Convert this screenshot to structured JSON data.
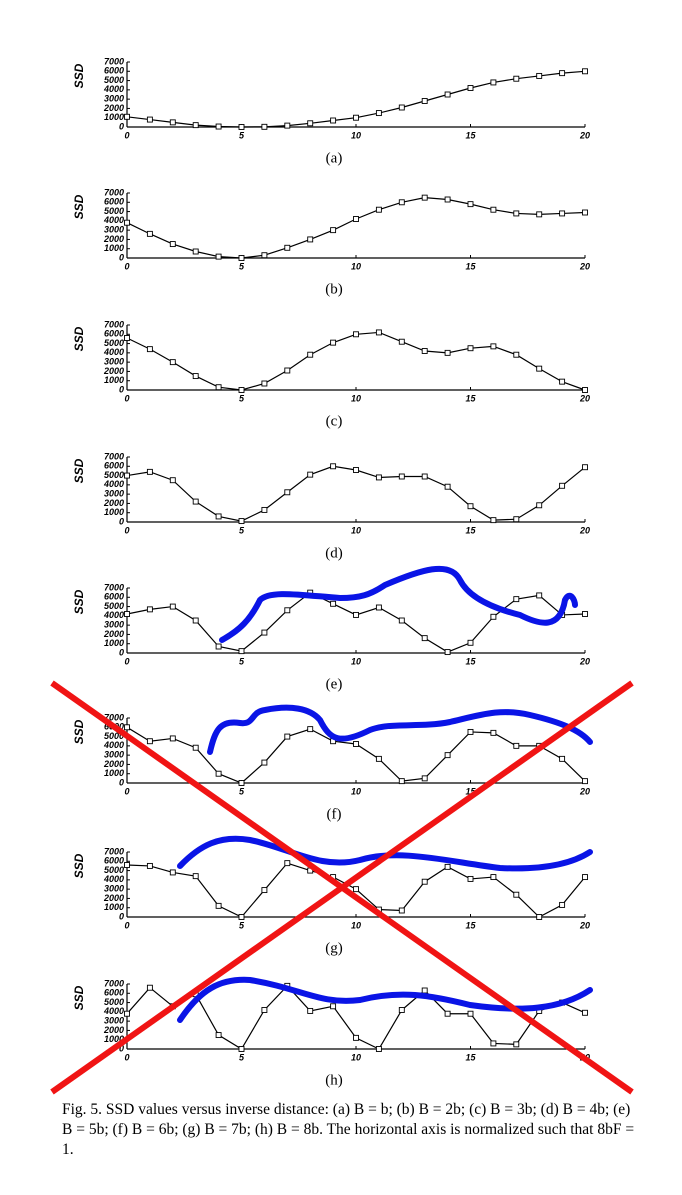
{
  "chart_data": [
    {
      "type": "line",
      "label": "(a)",
      "ylabel": "SSD",
      "x": [
        0,
        1,
        2,
        3,
        4,
        5,
        6,
        7,
        8,
        9,
        10,
        11,
        12,
        13,
        14,
        15,
        16,
        17,
        18,
        19,
        20
      ],
      "values": [
        1100,
        800,
        500,
        200,
        50,
        0,
        20,
        150,
        400,
        700,
        1000,
        1500,
        2100,
        2800,
        3500,
        4200,
        4800,
        5200,
        5500,
        5800,
        6000
      ],
      "xlim": [
        0,
        20
      ],
      "ylim": [
        0,
        7000
      ],
      "xticks": [
        0,
        5,
        10,
        15,
        20
      ],
      "yticks": [
        0,
        1000,
        2000,
        3000,
        4000,
        5000,
        6000,
        7000
      ]
    },
    {
      "type": "line",
      "label": "(b)",
      "ylabel": "SSD",
      "x": [
        0,
        1,
        2,
        3,
        4,
        5,
        6,
        7,
        8,
        9,
        10,
        11,
        12,
        13,
        14,
        15,
        16,
        17,
        18,
        19,
        20
      ],
      "values": [
        3800,
        2600,
        1500,
        700,
        150,
        0,
        300,
        1100,
        2000,
        3000,
        4200,
        5200,
        6000,
        6500,
        6300,
        5800,
        5200,
        4800,
        4700,
        4800,
        4900
      ],
      "xlim": [
        0,
        20
      ],
      "ylim": [
        0,
        7000
      ],
      "xticks": [
        0,
        5,
        10,
        15,
        20
      ],
      "yticks": [
        0,
        1000,
        2000,
        3000,
        4000,
        5000,
        6000,
        7000
      ]
    },
    {
      "type": "line",
      "label": "(c)",
      "ylabel": "SSD",
      "x": [
        0,
        1,
        2,
        3,
        4,
        5,
        6,
        7,
        8,
        9,
        10,
        11,
        12,
        13,
        14,
        15,
        16,
        17,
        18,
        19,
        20
      ],
      "values": [
        5600,
        4400,
        3000,
        1500,
        300,
        0,
        700,
        2100,
        3800,
        5100,
        6000,
        6200,
        5200,
        4200,
        4000,
        4500,
        4700,
        3800,
        2300,
        900,
        0
      ],
      "xlim": [
        0,
        20
      ],
      "ylim": [
        0,
        7000
      ],
      "xticks": [
        0,
        5,
        10,
        15,
        20
      ],
      "yticks": [
        0,
        1000,
        2000,
        3000,
        4000,
        5000,
        6000,
        7000
      ]
    },
    {
      "type": "line",
      "label": "(d)",
      "ylabel": "SSD",
      "x": [
        0,
        1,
        2,
        3,
        4,
        5,
        6,
        7,
        8,
        9,
        10,
        11,
        12,
        13,
        14,
        15,
        16,
        17,
        18,
        19,
        20
      ],
      "values": [
        5000,
        5400,
        4500,
        2200,
        600,
        100,
        1300,
        3200,
        5100,
        6000,
        5600,
        4800,
        4900,
        4900,
        3800,
        1700,
        200,
        300,
        1800,
        3900,
        5900
      ],
      "xlim": [
        0,
        20
      ],
      "ylim": [
        0,
        7000
      ],
      "xticks": [
        0,
        5,
        10,
        15,
        20
      ],
      "yticks": [
        0,
        1000,
        2000,
        3000,
        4000,
        5000,
        6000,
        7000
      ]
    },
    {
      "type": "line",
      "label": "(e)",
      "ylabel": "SSD",
      "x": [
        0,
        1,
        2,
        3,
        4,
        5,
        6,
        7,
        8,
        9,
        10,
        11,
        12,
        13,
        14,
        15,
        16,
        17,
        18,
        19,
        20
      ],
      "values": [
        4200,
        4700,
        5000,
        3500,
        700,
        200,
        2200,
        4600,
        6500,
        5300,
        4100,
        4900,
        3500,
        1600,
        100,
        1100,
        3900,
        5800,
        6200,
        4100,
        4200
      ],
      "xlim": [
        0,
        20
      ],
      "ylim": [
        0,
        7000
      ],
      "xticks": [
        0,
        5,
        10,
        15,
        20
      ],
      "yticks": [
        0,
        1000,
        2000,
        3000,
        4000,
        5000,
        6000,
        7000
      ]
    },
    {
      "type": "line",
      "label": "(f)",
      "ylabel": "SSD",
      "x": [
        0,
        1,
        2,
        3,
        4,
        5,
        6,
        7,
        8,
        9,
        10,
        11,
        12,
        13,
        14,
        15,
        16,
        17,
        18,
        19,
        20
      ],
      "values": [
        6000,
        4500,
        4800,
        3800,
        1000,
        0,
        2200,
        5000,
        5800,
        4500,
        4200,
        2600,
        200,
        500,
        3000,
        5500,
        5400,
        4000,
        4000,
        2600,
        200
      ],
      "xlim": [
        0,
        20
      ],
      "ylim": [
        0,
        7000
      ],
      "xticks": [
        0,
        5,
        10,
        15,
        20
      ],
      "yticks": [
        0,
        1000,
        2000,
        3000,
        4000,
        5000,
        6000,
        7000
      ]
    },
    {
      "type": "line",
      "label": "(g)",
      "ylabel": "SSD",
      "x": [
        0,
        1,
        2,
        3,
        4,
        5,
        6,
        7,
        8,
        9,
        10,
        11,
        12,
        13,
        14,
        15,
        16,
        17,
        18,
        19,
        20
      ],
      "values": [
        5600,
        5500,
        4800,
        4400,
        1200,
        0,
        2900,
        5800,
        5000,
        4300,
        3000,
        800,
        700,
        3800,
        5400,
        4100,
        4300,
        2400,
        0,
        1300,
        4300
      ],
      "xlim": [
        0,
        20
      ],
      "ylim": [
        0,
        7000
      ],
      "xticks": [
        0,
        5,
        10,
        15,
        20
      ],
      "yticks": [
        0,
        1000,
        2000,
        3000,
        4000,
        5000,
        6000,
        7000
      ]
    },
    {
      "type": "line",
      "label": "(h)",
      "ylabel": "SSD",
      "x": [
        0,
        1,
        2,
        3,
        4,
        5,
        6,
        7,
        8,
        9,
        10,
        11,
        12,
        13,
        14,
        15,
        16,
        17,
        18,
        19,
        20
      ],
      "values": [
        3800,
        6600,
        4600,
        5900,
        1500,
        0,
        4200,
        6800,
        4100,
        4600,
        1200,
        0,
        4200,
        6300,
        3800,
        3800,
        600,
        500,
        4100,
        5000,
        3900
      ],
      "xlim": [
        0,
        20
      ],
      "ylim": [
        0,
        7000
      ],
      "xticks": [
        0,
        5,
        10,
        15,
        20
      ],
      "yticks": [
        0,
        1000,
        2000,
        3000,
        4000,
        5000,
        6000,
        7000
      ]
    }
  ],
  "caption": "Fig. 5.  SSD values versus inverse distance: (a) B = b; (b) B = 2b; (c) B = 3b; (d) B = 4b; (e) B = 5b; (f) B = 6b; (g) B = 7b; (h) B = 8b. The horizontal axis is normalized such that 8bF = 1."
}
